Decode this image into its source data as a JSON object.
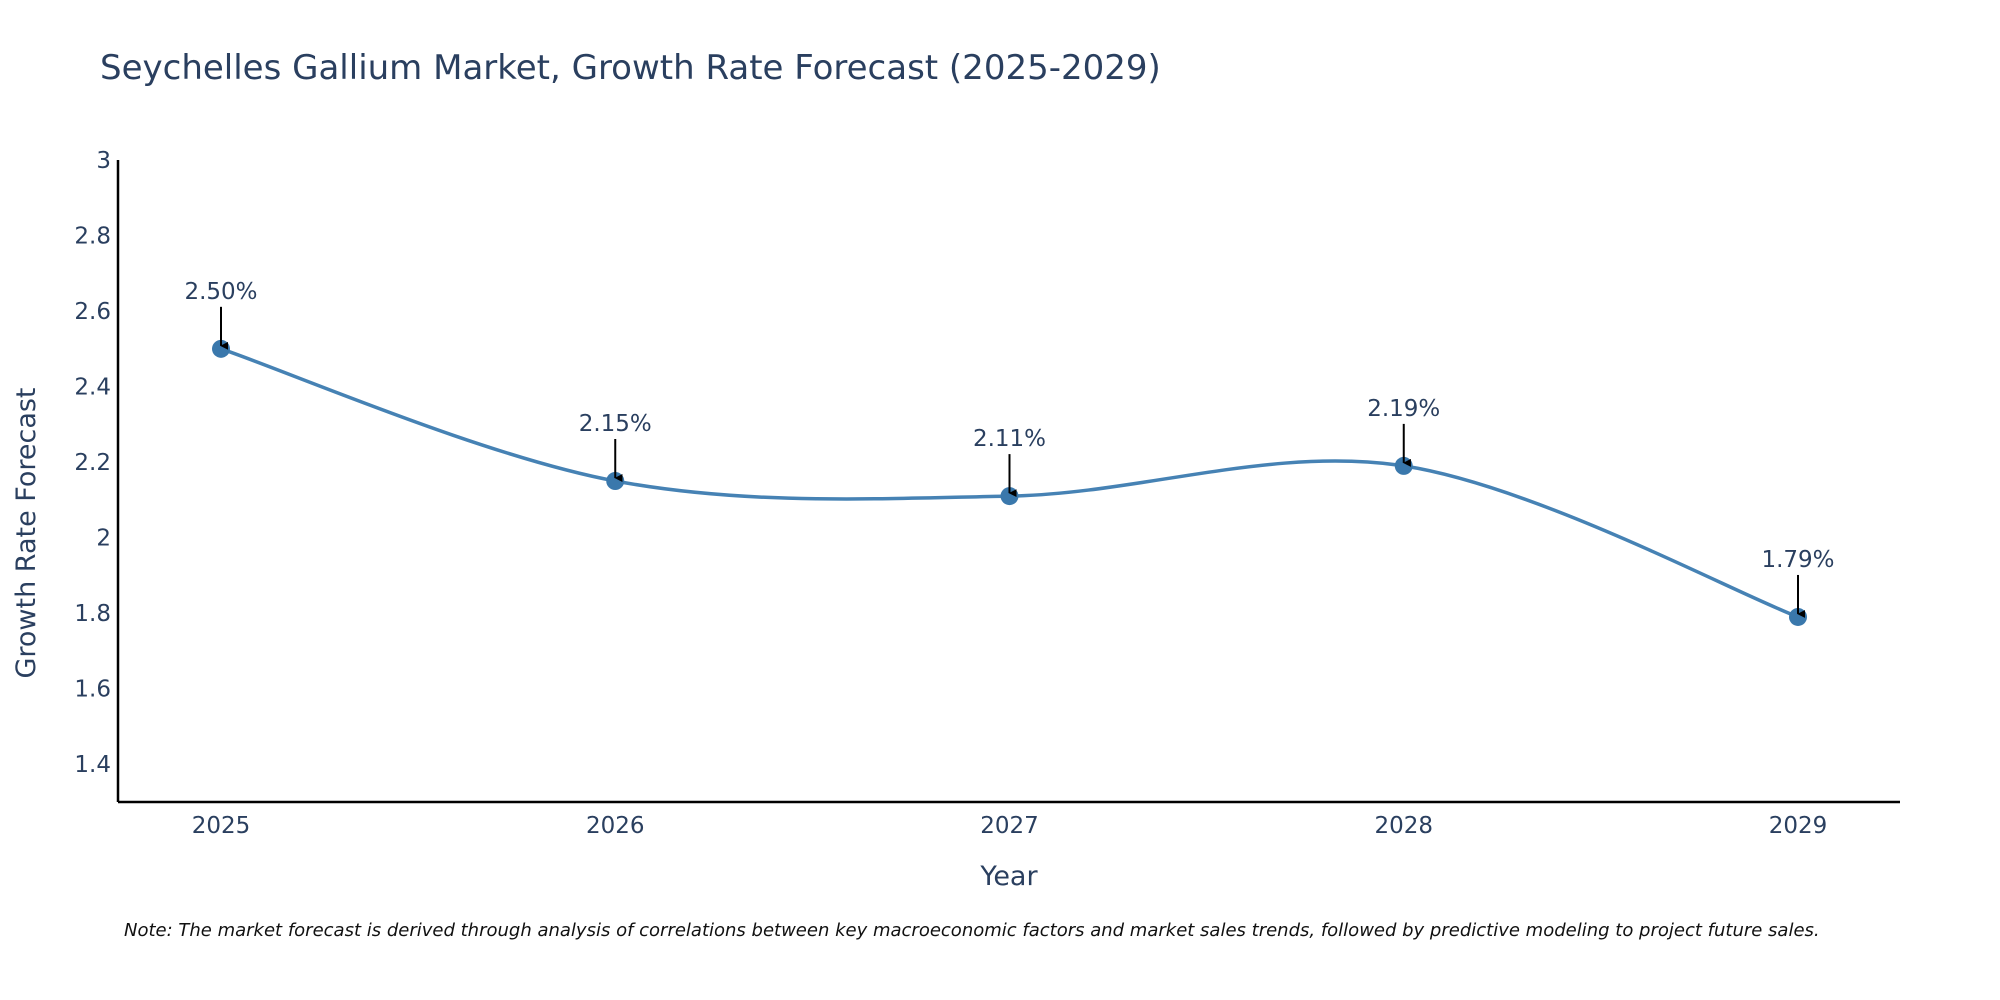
{
  "chart_data": {
    "type": "line",
    "title": "Seychelles Gallium Market, Growth Rate Forecast (2025-2029)",
    "xlabel": "Year",
    "ylabel": "Growth Rate Forecast",
    "categories": [
      "2025",
      "2026",
      "2027",
      "2028",
      "2029"
    ],
    "values": [
      2.5,
      2.15,
      2.11,
      2.19,
      1.79
    ],
    "annotations": [
      "2.50%",
      "2.15%",
      "2.11%",
      "2.19%",
      "1.79%"
    ],
    "ylim": [
      1.3,
      3.0
    ],
    "yticks": [
      1.4,
      1.6,
      1.8,
      2.0,
      2.2,
      2.4,
      2.6,
      2.8,
      3.0
    ],
    "ytick_labels": [
      "1.4",
      "1.6",
      "1.8",
      "2",
      "2.2",
      "2.4",
      "2.6",
      "2.8",
      "3"
    ],
    "grid": false,
    "line_shape": "spline",
    "colors": {
      "line": "#4682B4",
      "marker": "#3A78AC",
      "text": "#2A3F5F",
      "axis": "#000000"
    }
  },
  "note": "Note: The market forecast is derived through analysis of correlations between key macroeconomic factors and market sales trends, followed by predictive modeling to project future sales."
}
